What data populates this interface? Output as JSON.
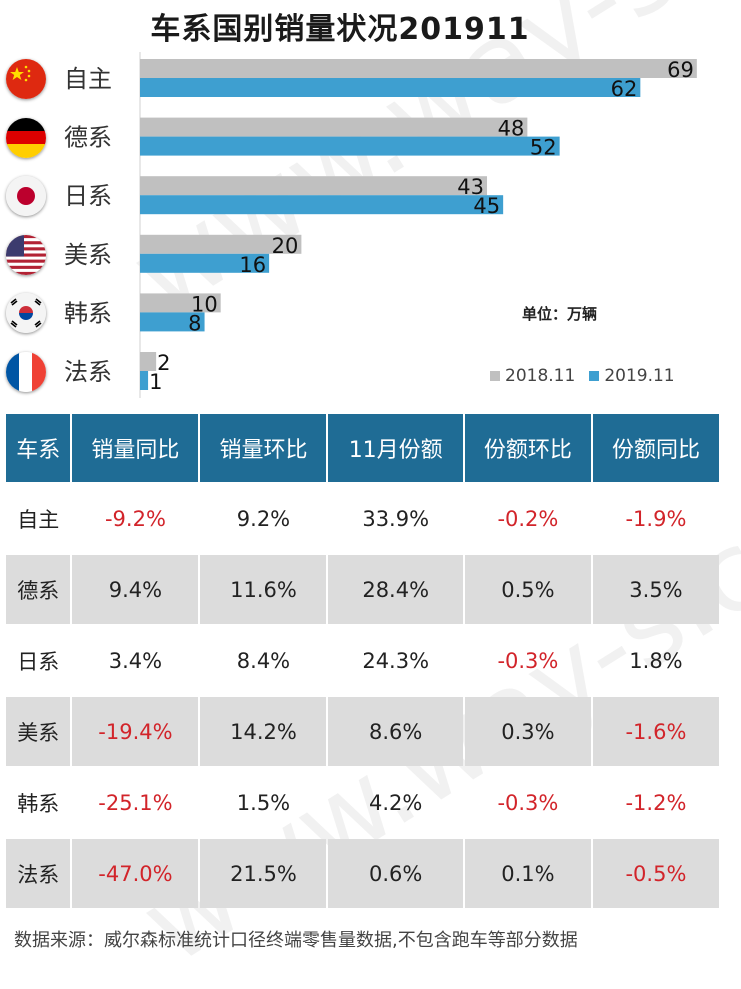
{
  "title": "车系国别销量状况201911",
  "unit_label": "单位：万辆",
  "watermark": "www.way-s.cn",
  "chart_data": {
    "type": "bar",
    "orientation": "horizontal",
    "title": "车系国别销量状况201911",
    "categories": [
      "自主",
      "德系",
      "日系",
      "美系",
      "韩系",
      "法系"
    ],
    "series": [
      {
        "name": "2018.11",
        "color": "#c0c0c0",
        "values": [
          69,
          48,
          43,
          20,
          10,
          2
        ]
      },
      {
        "name": "2019.11",
        "color": "#3e9fd0",
        "values": [
          62,
          52,
          45,
          16,
          8,
          1
        ]
      }
    ],
    "xlim": [
      0,
      73
    ],
    "legend_position": "bottom-right",
    "flags": [
      "china-flag-icon",
      "germany-flag-icon",
      "japan-flag-icon",
      "usa-flag-icon",
      "korea-flag-icon",
      "france-flag-icon"
    ]
  },
  "table": {
    "headers": [
      "车系",
      "销量同比",
      "销量环比",
      "11月份额",
      "份额环比",
      "份额同比"
    ],
    "rows": [
      [
        "自主",
        "-9.2%",
        "9.2%",
        "33.9%",
        "-0.2%",
        "-1.9%"
      ],
      [
        "德系",
        "9.4%",
        "11.6%",
        "28.4%",
        "0.5%",
        "3.5%"
      ],
      [
        "日系",
        "3.4%",
        "8.4%",
        "24.3%",
        "-0.3%",
        "1.8%"
      ],
      [
        "美系",
        "-19.4%",
        "14.2%",
        "8.6%",
        "0.3%",
        "-1.6%"
      ],
      [
        "韩系",
        "-25.1%",
        "1.5%",
        "4.2%",
        "-0.3%",
        "-1.2%"
      ],
      [
        "法系",
        "-47.0%",
        "21.5%",
        "0.6%",
        "0.1%",
        "-0.5%"
      ]
    ],
    "header_color": "#1f6c95",
    "negative_color": "#d2242a",
    "stripe_color": "#dcdcdc"
  },
  "footer": "数据来源：威尔森标准统计口径终端零售量数据,不包含跑车等部分数据"
}
